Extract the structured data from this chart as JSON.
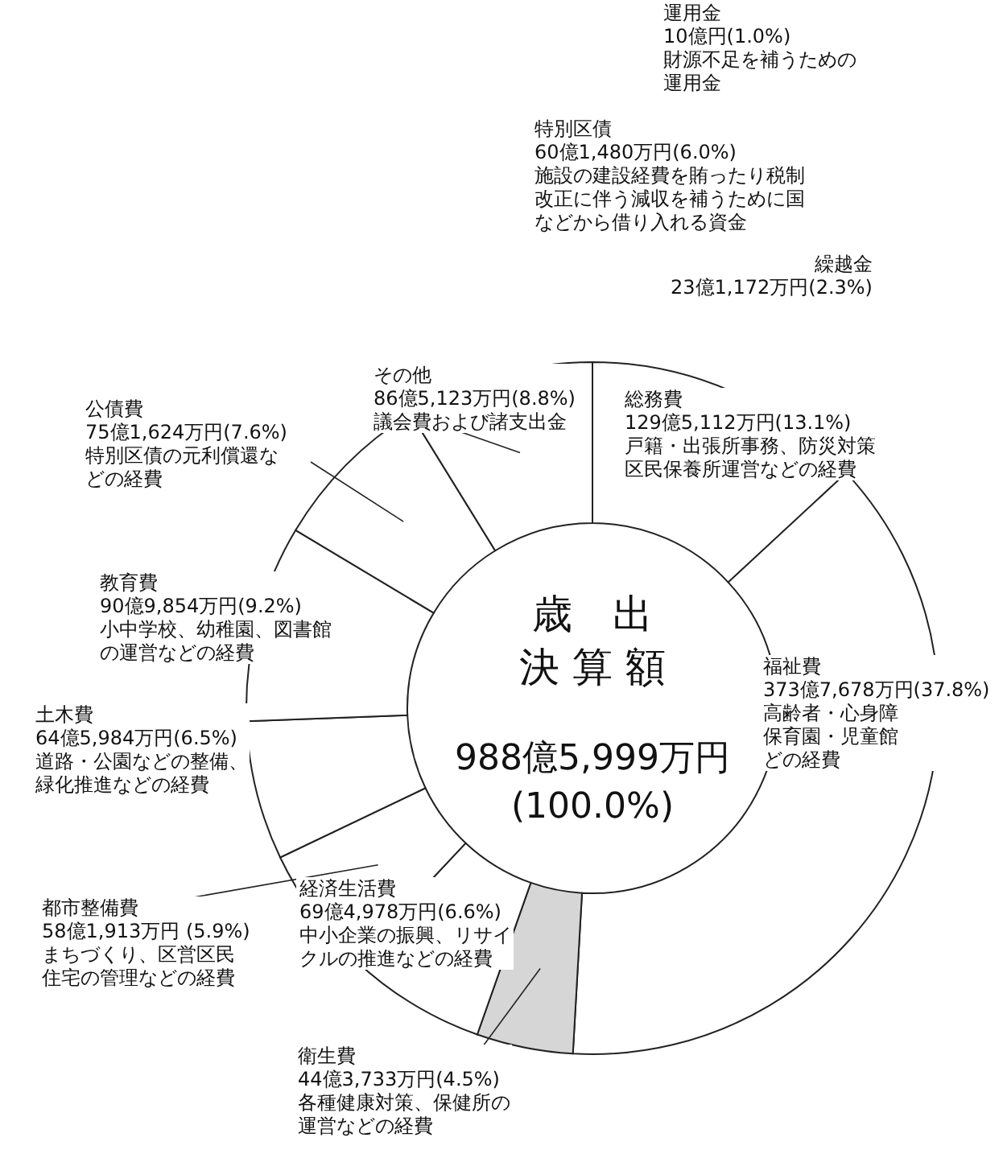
{
  "chart_data": [
    {
      "type": "donut",
      "title": "歳　出",
      "subtitle": "決 算 額",
      "categories": [
        "総務費",
        "福祉費",
        "衛生費",
        "経済生活費",
        "都市整備費",
        "土木費",
        "教育費",
        "公債費",
        "その他"
      ],
      "values": [
        13.1,
        37.8,
        4.5,
        6.6,
        5.9,
        6.5,
        9.2,
        7.6,
        8.8
      ],
      "colors": [
        "#ffffff",
        "#ffffff",
        "#d6d6d6",
        "#ffffff",
        "#ffffff",
        "#ffffff",
        "#ffffff",
        "#ffffff",
        "#ffffff"
      ],
      "value_labels": [
        "129億5,112万円(13.1%)",
        "373億7,678万円(37.8%)",
        "44億3,733万円(4.5%)",
        "69億4,978万円(6.6%)",
        "58億1,913万円 (5.9%)",
        "64億5,984万円(6.5%)",
        "90億9,854万円(9.2%)",
        "75億1,624万円(7.6%)",
        "86億5,123万円(8.8%)"
      ],
      "annotations": [
        "988億5,999万円",
        "(100.0%)",
        {
          "text": "戸籍・出張所事務、防災対策",
          "x": "総務費"
        },
        {
          "text": "区民保養所運営などの経費",
          "x": "総務費"
        },
        {
          "text": "高齢者・心身障",
          "x": "福祉費"
        },
        {
          "text": "保育園・児童館",
          "x": "福祉費"
        },
        {
          "text": "どの経費",
          "x": "福祉費"
        },
        {
          "text": "各種健康対策、保健所の",
          "x": "衛生費"
        },
        {
          "text": "運営などの経費",
          "x": "衛生費"
        },
        {
          "text": "中小企業の振興、リサイ",
          "x": "経済生活費"
        },
        {
          "text": "クルの推進などの経費",
          "x": "経済生活費"
        },
        {
          "text": "まちづくり、区営区民",
          "x": "都市整備費"
        },
        {
          "text": "住宅の管理などの経費",
          "x": "都市整備費"
        },
        {
          "text": "道路・公園などの整備、",
          "x": "土木費"
        },
        {
          "text": "緑化推進などの経費",
          "x": "土木費"
        },
        {
          "text": "小中学校、幼稚園、図書館",
          "x": "教育費"
        },
        {
          "text": "の運営などの経費",
          "x": "教育費"
        },
        {
          "text": "特別区債の元利償還な",
          "x": "公債費"
        },
        {
          "text": "どの経費",
          "x": "公債費"
        },
        {
          "text": "議会費および諸支出金",
          "x": "その他"
        }
      ]
    },
    {
      "type": "other",
      "annotations": [
        "運用金",
        "10億円(1.0%)",
        "財源不足を補うための",
        "運用金",
        "特別区債",
        "60億1,480万円(6.0%)",
        "施設の建設経費を賄ったり税制",
        "改正に伴う減収を補うために国",
        "などから借り入れる資金",
        "繰越金",
        "23億1,172万円(2.3%)"
      ]
    }
  ]
}
